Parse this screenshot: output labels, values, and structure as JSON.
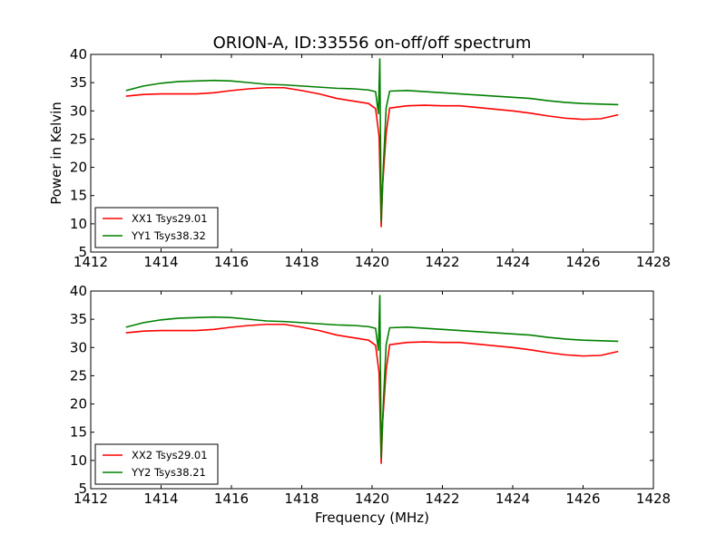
{
  "figure": {
    "title": "ORION-A, ID:33556 on-off/off spectrum",
    "ylabel": "Power in Kelvin",
    "xlabel": "Frequency (MHz)"
  },
  "chart_data": [
    {
      "type": "line",
      "xlim": [
        1412,
        1428
      ],
      "ylim": [
        5,
        40
      ],
      "xticks": [
        1412,
        1414,
        1416,
        1418,
        1420,
        1422,
        1424,
        1426,
        1428
      ],
      "yticks": [
        5,
        10,
        15,
        20,
        25,
        30,
        35,
        40
      ],
      "ylabel": "Power in Kelvin",
      "xlabel": "",
      "legend_position": "lower-left",
      "grid": false,
      "series": [
        {
          "name": "XX1 Tsys29.01",
          "color": "#ff0000",
          "x": [
            1413.0,
            1413.5,
            1414.0,
            1414.5,
            1415.0,
            1415.5,
            1416.0,
            1416.5,
            1417.0,
            1417.5,
            1418.0,
            1418.5,
            1419.0,
            1419.5,
            1419.9,
            1420.1,
            1420.2,
            1420.26,
            1420.3,
            1420.4,
            1420.5,
            1421.0,
            1421.5,
            1422.0,
            1422.5,
            1423.0,
            1423.5,
            1424.0,
            1424.5,
            1425.0,
            1425.5,
            1426.0,
            1426.5,
            1427.0
          ],
          "values": [
            32.6,
            32.9,
            33.0,
            33.0,
            33.0,
            33.2,
            33.6,
            33.9,
            34.1,
            34.1,
            33.6,
            33.0,
            32.2,
            31.7,
            31.3,
            30.4,
            25.5,
            9.5,
            16.8,
            26.0,
            30.5,
            30.9,
            31.0,
            30.9,
            30.9,
            30.6,
            30.3,
            30.0,
            29.6,
            29.1,
            28.7,
            28.5,
            28.6,
            29.3
          ]
        },
        {
          "name": "YY1 Tsys38.32",
          "color": "#008000",
          "x": [
            1413.0,
            1413.5,
            1414.0,
            1414.5,
            1415.0,
            1415.5,
            1416.0,
            1416.5,
            1417.0,
            1417.5,
            1418.0,
            1418.5,
            1419.0,
            1419.5,
            1419.9,
            1420.1,
            1420.18,
            1420.22,
            1420.26,
            1420.32,
            1420.4,
            1420.5,
            1421.0,
            1421.5,
            1422.0,
            1422.5,
            1423.0,
            1423.5,
            1424.0,
            1424.5,
            1425.0,
            1425.5,
            1426.0,
            1426.5,
            1427.0
          ],
          "values": [
            33.6,
            34.4,
            34.9,
            35.2,
            35.3,
            35.4,
            35.3,
            35.0,
            34.7,
            34.6,
            34.4,
            34.2,
            34.0,
            33.9,
            33.7,
            33.4,
            29.5,
            39.2,
            10.5,
            20.0,
            30.5,
            33.5,
            33.6,
            33.4,
            33.2,
            33.0,
            32.8,
            32.6,
            32.4,
            32.2,
            31.8,
            31.5,
            31.3,
            31.2,
            31.1
          ]
        }
      ]
    },
    {
      "type": "line",
      "xlim": [
        1412,
        1428
      ],
      "ylim": [
        5,
        40
      ],
      "xticks": [
        1412,
        1414,
        1416,
        1418,
        1420,
        1422,
        1424,
        1426,
        1428
      ],
      "yticks": [
        5,
        10,
        15,
        20,
        25,
        30,
        35,
        40
      ],
      "ylabel": "",
      "xlabel": "Frequency (MHz)",
      "legend_position": "lower-left",
      "grid": false,
      "series": [
        {
          "name": "XX2 Tsys29.01",
          "color": "#ff0000",
          "x": [
            1413.0,
            1413.5,
            1414.0,
            1414.5,
            1415.0,
            1415.5,
            1416.0,
            1416.5,
            1417.0,
            1417.5,
            1418.0,
            1418.5,
            1419.0,
            1419.5,
            1419.9,
            1420.1,
            1420.2,
            1420.26,
            1420.3,
            1420.4,
            1420.5,
            1421.0,
            1421.5,
            1422.0,
            1422.5,
            1423.0,
            1423.5,
            1424.0,
            1424.5,
            1425.0,
            1425.5,
            1426.0,
            1426.5,
            1427.0
          ],
          "values": [
            32.6,
            32.9,
            33.0,
            33.0,
            33.0,
            33.2,
            33.6,
            33.9,
            34.1,
            34.1,
            33.6,
            33.0,
            32.2,
            31.7,
            31.3,
            30.4,
            25.5,
            9.5,
            16.8,
            26.0,
            30.5,
            30.9,
            31.0,
            30.9,
            30.9,
            30.6,
            30.3,
            30.0,
            29.6,
            29.1,
            28.7,
            28.5,
            28.6,
            29.3
          ]
        },
        {
          "name": "YY2 Tsys38.21",
          "color": "#008000",
          "x": [
            1413.0,
            1413.5,
            1414.0,
            1414.5,
            1415.0,
            1415.5,
            1416.0,
            1416.5,
            1417.0,
            1417.5,
            1418.0,
            1418.5,
            1419.0,
            1419.5,
            1419.9,
            1420.1,
            1420.18,
            1420.22,
            1420.26,
            1420.32,
            1420.4,
            1420.5,
            1421.0,
            1421.5,
            1422.0,
            1422.5,
            1423.0,
            1423.5,
            1424.0,
            1424.5,
            1425.0,
            1425.5,
            1426.0,
            1426.5,
            1427.0
          ],
          "values": [
            33.6,
            34.4,
            34.9,
            35.2,
            35.3,
            35.4,
            35.3,
            35.0,
            34.7,
            34.6,
            34.4,
            34.2,
            34.0,
            33.9,
            33.7,
            33.4,
            29.5,
            39.2,
            10.5,
            20.0,
            30.5,
            33.5,
            33.6,
            33.4,
            33.2,
            33.0,
            32.8,
            32.6,
            32.4,
            32.2,
            31.8,
            31.5,
            31.3,
            31.2,
            31.1
          ]
        }
      ]
    }
  ]
}
